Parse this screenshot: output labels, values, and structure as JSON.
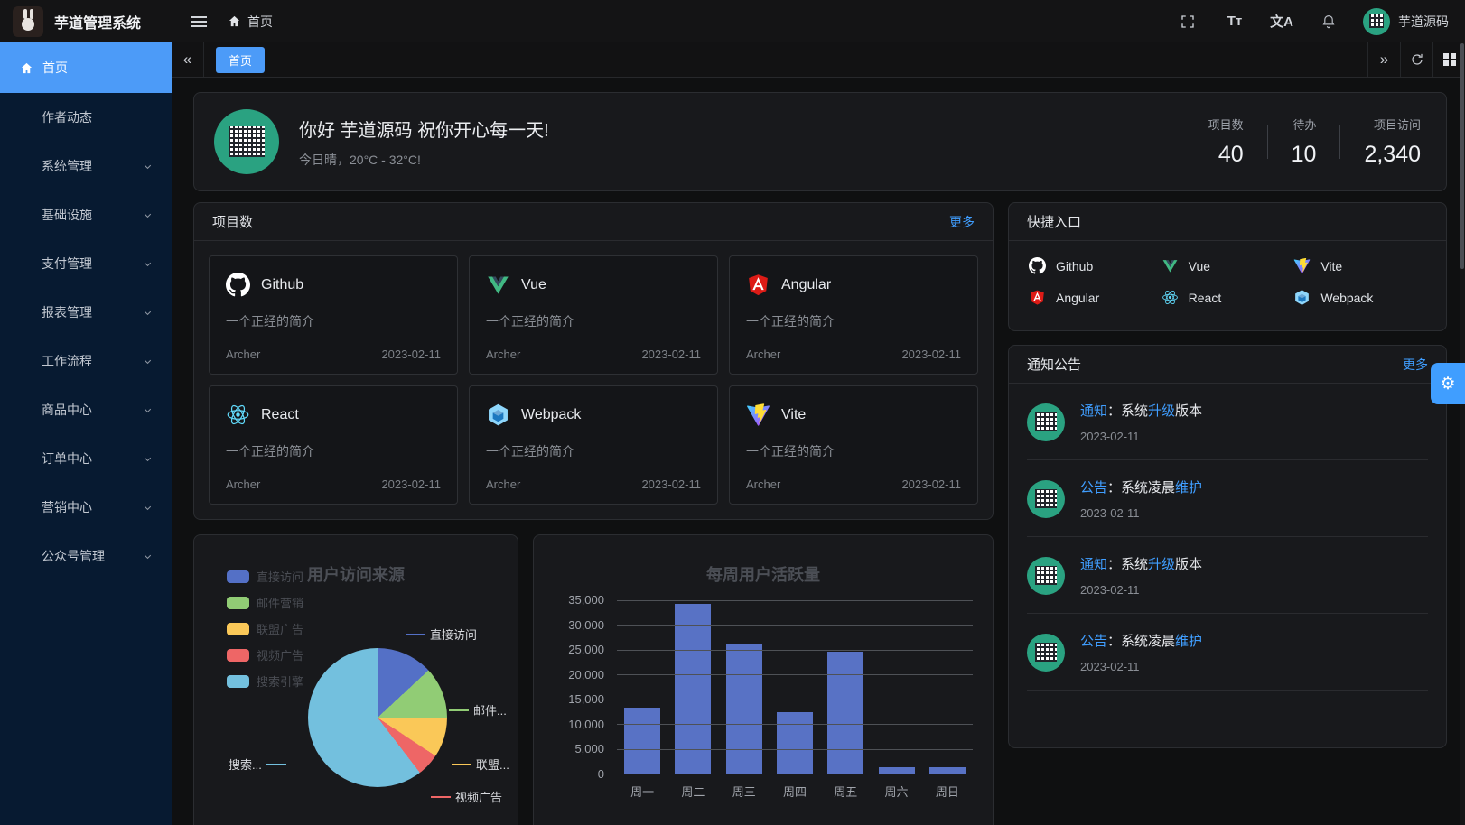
{
  "topbar": {
    "title": "芋道管理系统",
    "breadcrumb": "首页",
    "username": "芋道源码"
  },
  "icons": {
    "font_size": "Tт",
    "locale": "文A",
    "collapse": "«",
    "expand": "»",
    "settings": "⚙"
  },
  "sidebar": {
    "active": "首页",
    "items": [
      {
        "label": "作者动态",
        "has_children": false
      },
      {
        "label": "系统管理",
        "has_children": true
      },
      {
        "label": "基础设施",
        "has_children": true
      },
      {
        "label": "支付管理",
        "has_children": true
      },
      {
        "label": "报表管理",
        "has_children": true
      },
      {
        "label": "工作流程",
        "has_children": true
      },
      {
        "label": "商品中心",
        "has_children": true
      },
      {
        "label": "订单中心",
        "has_children": true
      },
      {
        "label": "营销中心",
        "has_children": true
      },
      {
        "label": "公众号管理",
        "has_children": true
      }
    ]
  },
  "tabbar": {
    "active_tab": "首页"
  },
  "greeting": {
    "title": "你好 芋道源码 祝你开心每一天!",
    "subtitle": "今日晴，20°C - 32°C!",
    "stats": [
      {
        "label": "项目数",
        "value": "40"
      },
      {
        "label": "待办",
        "value": "10"
      },
      {
        "label": "项目访问",
        "value": "2,340"
      }
    ]
  },
  "projects": {
    "title": "项目数",
    "more": "更多",
    "items": [
      {
        "name": "Github",
        "icon": "github-icon",
        "desc": "一个正经的简介",
        "author": "Archer",
        "date": "2023-02-11"
      },
      {
        "name": "Vue",
        "icon": "vue-icon",
        "desc": "一个正经的简介",
        "author": "Archer",
        "date": "2023-02-11"
      },
      {
        "name": "Angular",
        "icon": "angular-icon",
        "desc": "一个正经的简介",
        "author": "Archer",
        "date": "2023-02-11"
      },
      {
        "name": "React",
        "icon": "react-icon",
        "desc": "一个正经的简介",
        "author": "Archer",
        "date": "2023-02-11"
      },
      {
        "name": "Webpack",
        "icon": "webpack-icon",
        "desc": "一个正经的简介",
        "author": "Archer",
        "date": "2023-02-11"
      },
      {
        "name": "Vite",
        "icon": "vite-icon",
        "desc": "一个正经的简介",
        "author": "Archer",
        "date": "2023-02-11"
      }
    ]
  },
  "shortcuts": {
    "title": "快捷入口",
    "items": [
      {
        "name": "Github",
        "icon": "github-icon"
      },
      {
        "name": "Vue",
        "icon": "vue-icon"
      },
      {
        "name": "Vite",
        "icon": "vite-icon"
      },
      {
        "name": "Angular",
        "icon": "angular-icon"
      },
      {
        "name": "React",
        "icon": "react-icon"
      },
      {
        "name": "Webpack",
        "icon": "webpack-icon"
      }
    ]
  },
  "notices": {
    "title": "通知公告",
    "more": "更多",
    "items": [
      {
        "segments": [
          {
            "text": "通知",
            "highlight": true
          },
          {
            "text": "：系统",
            "highlight": false
          },
          {
            "text": "升级",
            "highlight": true
          },
          {
            "text": "版本",
            "highlight": false
          }
        ],
        "date": "2023-02-11"
      },
      {
        "segments": [
          {
            "text": "公告",
            "highlight": true
          },
          {
            "text": "：系统凌晨",
            "highlight": false
          },
          {
            "text": "维护",
            "highlight": true
          }
        ],
        "date": "2023-02-11"
      },
      {
        "segments": [
          {
            "text": "通知",
            "highlight": true
          },
          {
            "text": "：系统",
            "highlight": false
          },
          {
            "text": "升级",
            "highlight": true
          },
          {
            "text": "版本",
            "highlight": false
          }
        ],
        "date": "2023-02-11"
      },
      {
        "segments": [
          {
            "text": "公告",
            "highlight": true
          },
          {
            "text": "：系统凌晨",
            "highlight": false
          },
          {
            "text": "维护",
            "highlight": true
          }
        ],
        "date": "2023-02-11"
      }
    ]
  },
  "chart_data": [
    {
      "type": "pie",
      "title": "用户访问来源",
      "legend_position": "top-left",
      "series": [
        {
          "name": "直接访问",
          "value": 335,
          "color": "#5470c6"
        },
        {
          "name": "邮件营销",
          "value": 310,
          "color": "#91cc75"
        },
        {
          "name": "联盟广告",
          "value": 234,
          "color": "#fac858"
        },
        {
          "name": "视频广告",
          "value": 135,
          "color": "#ee6666"
        },
        {
          "name": "搜索引擎",
          "value": 1548,
          "color": "#73c0de"
        }
      ],
      "slice_labels": [
        "直接访问",
        "邮件...",
        "联盟...",
        "视频广告",
        "搜索..."
      ]
    },
    {
      "type": "bar",
      "title": "每周用户活跃量",
      "categories": [
        "周一",
        "周二",
        "周三",
        "周四",
        "周五",
        "周六",
        "周日"
      ],
      "values": [
        13300,
        34300,
        26300,
        12400,
        24700,
        1300,
        1300
      ],
      "ylim": [
        0,
        35000
      ],
      "yticks": [
        "0",
        "5,000",
        "10,000",
        "15,000",
        "20,000",
        "25,000",
        "30,000",
        "35,000"
      ],
      "bar_color": "#5872c5",
      "grid": "on"
    }
  ]
}
